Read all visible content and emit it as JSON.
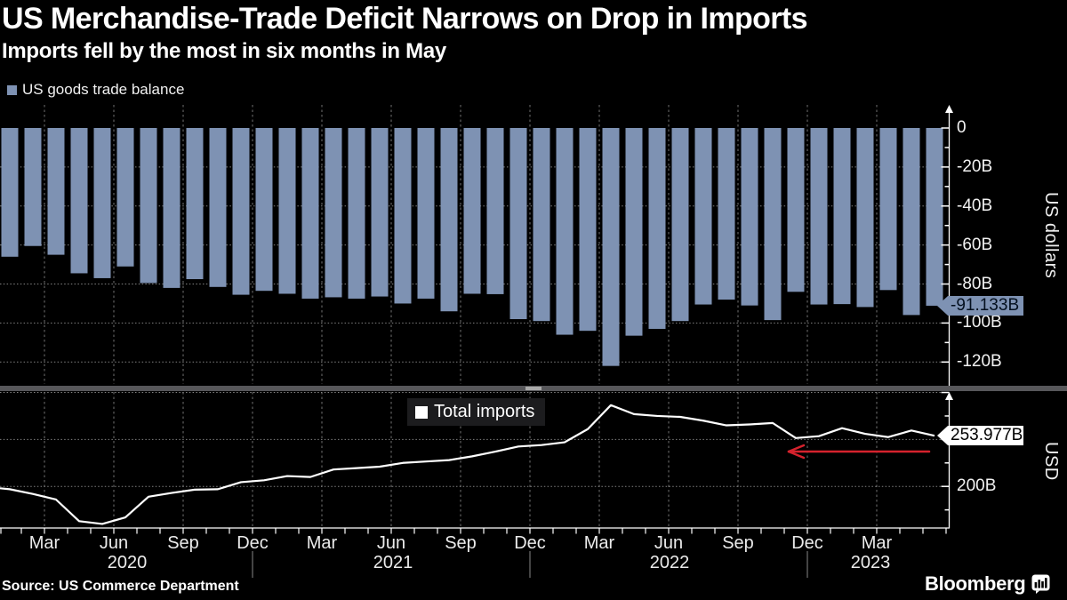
{
  "title": "US Merchandise-Trade Deficit Narrows on Drop in Imports",
  "subtitle": "Imports fell by the most in six months in May",
  "source": "Source: US Commerce Department",
  "branding": {
    "logo_text": "Bloomberg",
    "logo_icon": "bloomberg-terminal-icon"
  },
  "colors": {
    "background": "#000000",
    "bar": "#7E92B3",
    "line": "#FFFFFF",
    "arrow": "#D5222D",
    "grid": "#8f8f8f",
    "axis": "#FFFFFF",
    "divider": "#57575a",
    "badge_balance_bg": "#7E92B3",
    "badge_imports_bg": "#FFFFFF"
  },
  "top_chart": {
    "legend": "US goods trade balance",
    "axis_caption": "US dollars",
    "badge": "-91.133B",
    "yticks": [
      {
        "label": "0",
        "value": 0
      },
      {
        "label": "-20B",
        "value": -20
      },
      {
        "label": "-40B",
        "value": -40
      },
      {
        "label": "-60B",
        "value": -60
      },
      {
        "label": "-80B",
        "value": -80
      },
      {
        "label": "-100B",
        "value": -100
      },
      {
        "label": "-120B",
        "value": -120
      }
    ]
  },
  "bottom_chart": {
    "legend": "Total imports",
    "axis_caption": "USD",
    "badge": "253.977B",
    "yticks": [
      {
        "label": "200B",
        "value": 200
      }
    ],
    "annotation": "red left-pointing arrow highlighting decline in recent imports"
  },
  "x_axis": {
    "quarter_months": [
      "Mar",
      "Jun",
      "Sep",
      "Dec"
    ],
    "years": [
      "2020",
      "2021",
      "2022",
      "2023"
    ]
  },
  "chart_data": [
    {
      "type": "bar",
      "name": "US goods trade balance",
      "unit": "billion USD",
      "ylabel": "US dollars",
      "ylim": [
        -132,
        12
      ],
      "grid": "dotted horizontal every 20B, dotted vertical quarterly",
      "legend_position": "top-left",
      "last_value_label": "-91.133B",
      "categories": [
        "Jan 2020",
        "Feb 2020",
        "Mar 2020",
        "Apr 2020",
        "May 2020",
        "Jun 2020",
        "Jul 2020",
        "Aug 2020",
        "Sep 2020",
        "Oct 2020",
        "Nov 2020",
        "Dec 2020",
        "Jan 2021",
        "Feb 2021",
        "Mar 2021",
        "Apr 2021",
        "May 2021",
        "Jun 2021",
        "Jul 2021",
        "Aug 2021",
        "Sep 2021",
        "Oct 2021",
        "Nov 2021",
        "Dec 2021",
        "Jan 2022",
        "Feb 2022",
        "Mar 2022",
        "Apr 2022",
        "May 2022",
        "Jun 2022",
        "Jul 2022",
        "Aug 2022",
        "Sep 2022",
        "Oct 2022",
        "Nov 2022",
        "Dec 2022",
        "Jan 2023",
        "Feb 2023",
        "Mar 2023",
        "Apr 2023",
        "May 2023"
      ],
      "values": [
        -66,
        -60.5,
        -65,
        -74.5,
        -77,
        -71,
        -79.5,
        -82,
        -77.5,
        -81.5,
        -85.5,
        -83.5,
        -85,
        -87.5,
        -86.8,
        -87.5,
        -86.4,
        -90,
        -87.5,
        -94,
        -85,
        -85.2,
        -98,
        -99,
        -106,
        -104,
        -122,
        -106.5,
        -103,
        -99,
        -90.5,
        -88,
        -91,
        -98.5,
        -84,
        -90.5,
        -90.3,
        -91.8,
        -83.1,
        -95.9,
        -91.133
      ]
    },
    {
      "type": "line",
      "name": "Total imports",
      "unit": "billion USD",
      "ylabel": "USD",
      "ylim": [
        156,
        301
      ],
      "grid": "dotted horizontal every 50B, dotted vertical quarterly",
      "legend_position": "top-center",
      "last_value_label": "253.977B",
      "categories": [
        "Jan 2020",
        "Feb 2020",
        "Mar 2020",
        "Apr 2020",
        "May 2020",
        "Jun 2020",
        "Jul 2020",
        "Aug 2020",
        "Sep 2020",
        "Oct 2020",
        "Nov 2020",
        "Dec 2020",
        "Jan 2021",
        "Feb 2021",
        "Mar 2021",
        "Apr 2021",
        "May 2021",
        "Jun 2021",
        "Jul 2021",
        "Aug 2021",
        "Sep 2021",
        "Oct 2021",
        "Nov 2021",
        "Dec 2021",
        "Jan 2022",
        "Feb 2022",
        "Mar 2022",
        "Apr 2022",
        "May 2022",
        "Jun 2022",
        "Jul 2022",
        "Aug 2022",
        "Sep 2022",
        "Oct 2022",
        "Nov 2022",
        "Dec 2022",
        "Jan 2023",
        "Feb 2023",
        "Mar 2023",
        "Apr 2023",
        "May 2023"
      ],
      "values": [
        197,
        192,
        186,
        163,
        160,
        167,
        189,
        193,
        196.5,
        197,
        204.5,
        206.5,
        211,
        210,
        218,
        219.5,
        221,
        225,
        226.5,
        228,
        232,
        237,
        242.5,
        244,
        247,
        261,
        286.5,
        277,
        275,
        274,
        270,
        265,
        266,
        267.5,
        251.5,
        253.5,
        262,
        256,
        252.5,
        259.5,
        253.977
      ]
    }
  ]
}
